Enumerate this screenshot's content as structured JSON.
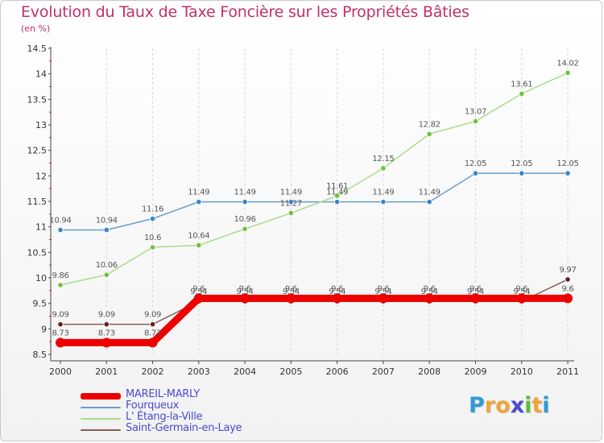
{
  "title": "Evolution du Taux de Taxe Foncière sur les Propriétés Bâties",
  "subtitle": "(en %)",
  "brand": {
    "letters": [
      "P",
      "r",
      "o",
      "x",
      "i",
      "t",
      "i"
    ],
    "colors": [
      "#2f9ad6",
      "#f2a33a",
      "#f2a33a",
      "#4a4ad0",
      "#5dbb3c",
      "#f2a33a",
      "#2f9ad6"
    ]
  },
  "chart_data": {
    "type": "line",
    "title": "Evolution du Taux de Taxe Foncière sur les Propriétés Bâties",
    "ylabel": "(en %)",
    "xlabel": "",
    "x": [
      "2000",
      "2001",
      "2002",
      "2003",
      "2004",
      "2005",
      "2006",
      "2007",
      "2008",
      "2009",
      "2010",
      "2011"
    ],
    "ylim": [
      8.5,
      14.5
    ],
    "yticks": [
      "8.5",
      "9",
      "9.5",
      "10",
      "10.5",
      "11",
      "11.5",
      "12",
      "12.5",
      "13",
      "13.5",
      "14",
      "14.5"
    ],
    "grid": "vertical",
    "series": [
      {
        "name": "MAREIL-MARLY",
        "color": "#ee0000",
        "thick": true,
        "values": [
          8.73,
          8.73,
          8.73,
          9.6,
          9.6,
          9.6,
          9.6,
          9.6,
          9.6,
          9.6,
          9.6,
          9.6
        ],
        "labels": [
          "8.73",
          "8.73",
          "8.73",
          "9.6",
          "9.6",
          "9.6",
          "9.6",
          "9.6",
          "9.6",
          "9.6",
          "9.6",
          "9.6"
        ]
      },
      {
        "name": "Fourqueux",
        "color": "#6b9ccc",
        "thick": false,
        "marker": "#3a84c8",
        "values": [
          10.94,
          10.94,
          11.16,
          11.49,
          11.49,
          11.49,
          11.49,
          11.49,
          11.49,
          12.05,
          12.05,
          12.05
        ],
        "labels": [
          "10.94",
          "10.94",
          "11.16",
          "11.49",
          "11.49",
          "11.49",
          "11.49",
          "11.49",
          "11.49",
          "12.05",
          "12.05",
          "12.05"
        ]
      },
      {
        "name": "L' Étang-la-Ville",
        "color": "#a8dc8a",
        "thick": false,
        "marker": "#6cc23a",
        "values": [
          9.86,
          10.06,
          10.6,
          10.64,
          10.96,
          11.27,
          11.61,
          12.15,
          12.82,
          13.07,
          13.61,
          14.02
        ],
        "labels": [
          "9.86",
          "10.06",
          "10.6",
          "10.64",
          "10.96",
          "11.27",
          "11.61",
          "12.15",
          "12.82",
          "13.07",
          "13.61",
          "14.02"
        ]
      },
      {
        "name": "Saint-Germain-en-Laye",
        "color": "#8a5a5a",
        "thick": false,
        "marker": "#6a1a1a",
        "values": [
          9.09,
          9.09,
          9.09,
          9.54,
          9.54,
          9.54,
          9.54,
          9.54,
          9.54,
          9.54,
          9.54,
          9.97
        ],
        "labels": [
          "9.09",
          "9.09",
          "9.09",
          "9.54",
          "9.54",
          "9.54",
          "9.54",
          "9.54",
          "9.54",
          "9.54",
          "9.54",
          "9.97"
        ]
      }
    ],
    "legend": [
      "MAREIL-MARLY",
      "Fourqueux",
      "L' Étang-la-Ville",
      "Saint-Germain-en-Laye"
    ]
  }
}
